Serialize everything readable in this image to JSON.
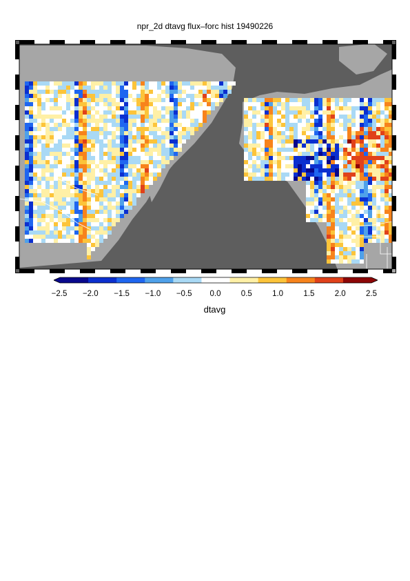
{
  "title": "npr_2d dtavg flux–forc hist 19490226",
  "colorbar": {
    "label": "dtavg",
    "ticks": [
      "−2.5",
      "−2.0",
      "−1.5",
      "−1.0",
      "−0.5",
      "0.0",
      "0.5",
      "1.0",
      "1.5",
      "2.0",
      "2.5"
    ],
    "range": [
      -2.5,
      2.5
    ],
    "colors": [
      "#08088c",
      "#0b2fcf",
      "#1f66f0",
      "#4fa1ea",
      "#a9d9f5",
      "#ffffff",
      "#fff0a6",
      "#fcc43a",
      "#f7831c",
      "#e0411a",
      "#8c0606"
    ]
  },
  "map": {
    "ocean_color": "#5e5e5e",
    "land_color": "#a6a6a6",
    "field_variable": "dtavg",
    "projection": "Pacific-centred lat/lon, Asia left, North America right"
  }
}
